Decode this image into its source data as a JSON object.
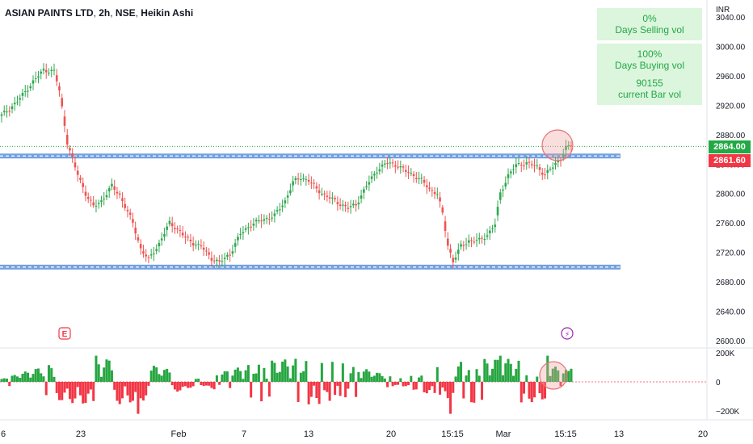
{
  "header": {
    "symbol": "ASIAN PAINTS LTD",
    "interval": "2h",
    "exchange": "NSE",
    "chart_style": "Heikin Ashi"
  },
  "currency_label": "INR",
  "info_panel": [
    {
      "value": "0%",
      "label": "Days Selling vol"
    },
    {
      "value": "100%",
      "label": "Days Buying vol"
    },
    {
      "value": "90155",
      "label": "current Bar vol"
    }
  ],
  "price_badges": {
    "last": "2864.00",
    "prev": "2861.60"
  },
  "markers": {
    "earnings": "E",
    "dividend": "⚡"
  },
  "colors": {
    "up": "#26a69a",
    "green_candle": "#2fa84f",
    "red_candle": "#ef5350",
    "level_line": "#5b8fd9",
    "circle": "#f2a0a0",
    "vol_up": "#26a641",
    "vol_down": "#f23645",
    "badge_green": "#22a845",
    "badge_red": "#f23645"
  },
  "chart_data": {
    "type": "candlestick",
    "style": "Heikin Ashi",
    "price_axis": {
      "ticks": [
        2600,
        2640,
        2680,
        2720,
        2760,
        2800,
        2840,
        2880,
        2920,
        2960,
        3000,
        3040
      ],
      "tick_labels": [
        "2600.00",
        "2640.00",
        "2680.00",
        "2720.00",
        "2760.00",
        "2800.00",
        "2840.00",
        "2880.00",
        "2920.00",
        "2960.00",
        "3000.00",
        "3040.00"
      ],
      "range": [
        2596,
        3060
      ]
    },
    "volume_axis": {
      "ticks": [
        200000,
        0,
        -200000
      ],
      "tick_labels": [
        "200K",
        "0",
        "−200K"
      ],
      "range": [
        -250000,
        240000
      ]
    },
    "time_axis_labels": [
      "6",
      "23",
      "Feb",
      "7",
      "13",
      "20",
      "15:15",
      "Mar",
      "15:15",
      "13",
      "20"
    ],
    "horizontal_levels": [
      2851,
      2700
    ],
    "last_price": 2864.0,
    "prev_close": 2861.6,
    "anchors": [
      [
        0,
        2906
      ],
      [
        6,
        2925
      ],
      [
        12,
        2952
      ],
      [
        16,
        2968
      ],
      [
        20,
        2966
      ],
      [
        22,
        2940
      ],
      [
        25,
        2870
      ],
      [
        28,
        2835
      ],
      [
        32,
        2800
      ],
      [
        35,
        2782
      ],
      [
        38,
        2790
      ],
      [
        42,
        2810
      ],
      [
        45,
        2798
      ],
      [
        48,
        2775
      ],
      [
        50,
        2760
      ],
      [
        53,
        2725
      ],
      [
        56,
        2710
      ],
      [
        60,
        2732
      ],
      [
        64,
        2760
      ],
      [
        67,
        2752
      ],
      [
        70,
        2740
      ],
      [
        73,
        2733
      ],
      [
        76,
        2728
      ],
      [
        80,
        2712
      ],
      [
        83,
        2706
      ],
      [
        87,
        2718
      ],
      [
        91,
        2745
      ],
      [
        95,
        2758
      ],
      [
        100,
        2765
      ],
      [
        104,
        2770
      ],
      [
        108,
        2790
      ],
      [
        111,
        2815
      ],
      [
        114,
        2822
      ],
      [
        117,
        2818
      ],
      [
        120,
        2806
      ],
      [
        124,
        2796
      ],
      [
        128,
        2788
      ],
      [
        132,
        2780
      ],
      [
        135,
        2785
      ],
      [
        139,
        2810
      ],
      [
        143,
        2832
      ],
      [
        147,
        2842
      ],
      [
        151,
        2838
      ],
      [
        154,
        2830
      ],
      [
        157,
        2825
      ],
      [
        160,
        2818
      ],
      [
        163,
        2806
      ],
      [
        166,
        2800
      ],
      [
        168,
        2772
      ],
      [
        170,
        2730
      ],
      [
        172,
        2708
      ],
      [
        175,
        2728
      ],
      [
        178,
        2736
      ],
      [
        182,
        2736
      ],
      [
        185,
        2744
      ],
      [
        188,
        2758
      ],
      [
        190,
        2800
      ],
      [
        193,
        2825
      ],
      [
        196,
        2838
      ],
      [
        200,
        2842
      ],
      [
        204,
        2836
      ],
      [
        207,
        2826
      ],
      [
        210,
        2836
      ],
      [
        213,
        2848
      ],
      [
        215,
        2862
      ],
      [
        217,
        2865
      ]
    ],
    "volume": [
      {
        "from_bar": 0,
        "to_bar": 217,
        "unit": "shares",
        "note_values": [
          180000,
          -220000,
          90155
        ]
      }
    ]
  }
}
